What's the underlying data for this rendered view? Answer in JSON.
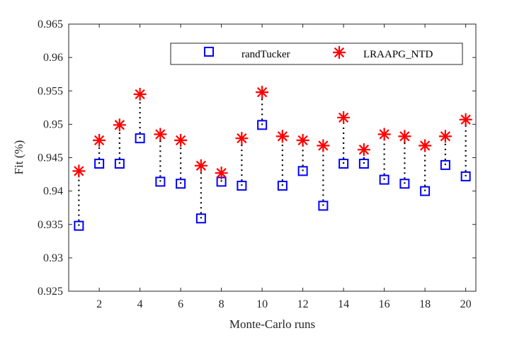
{
  "chart_data": {
    "type": "scatter",
    "xlabel": "Monte-Carlo runs",
    "ylabel": "Fit (%)",
    "xlim": [
      0.5,
      20.5
    ],
    "ylim": [
      0.925,
      0.965
    ],
    "x_ticks": [
      2,
      4,
      6,
      8,
      10,
      12,
      14,
      16,
      18,
      20
    ],
    "y_ticks": [
      0.925,
      0.93,
      0.935,
      0.94,
      0.945,
      0.95,
      0.955,
      0.96,
      0.965
    ],
    "x_tick_labels": [
      "2",
      "4",
      "6",
      "8",
      "10",
      "12",
      "14",
      "16",
      "18",
      "20"
    ],
    "y_tick_labels": [
      "0.925",
      "0.93",
      "0.935",
      "0.94",
      "0.945",
      "0.95",
      "0.955",
      "0.96",
      "0.965"
    ],
    "legend_position": "top-right",
    "grid": false,
    "x": [
      1,
      2,
      3,
      4,
      5,
      6,
      7,
      8,
      9,
      10,
      11,
      12,
      13,
      14,
      15,
      16,
      17,
      18,
      19,
      20
    ],
    "series": [
      {
        "name": "randTucker",
        "marker": "square",
        "color": "#0000ff",
        "values": [
          0.9348,
          0.9441,
          0.9441,
          0.9479,
          0.9414,
          0.9411,
          0.9359,
          0.9414,
          0.9408,
          0.9499,
          0.9408,
          0.943,
          0.9378,
          0.9441,
          0.9441,
          0.9417,
          0.9411,
          0.94,
          0.9439,
          0.9422
        ]
      },
      {
        "name": "LRAAPG_NTD",
        "marker": "star",
        "color": "#ff0000",
        "values": [
          0.943,
          0.9476,
          0.9499,
          0.9545,
          0.9485,
          0.9476,
          0.9438,
          0.9427,
          0.9479,
          0.9548,
          0.9482,
          0.9476,
          0.9468,
          0.951,
          0.9462,
          0.9485,
          0.9482,
          0.9468,
          0.9482,
          0.9507
        ]
      }
    ]
  }
}
